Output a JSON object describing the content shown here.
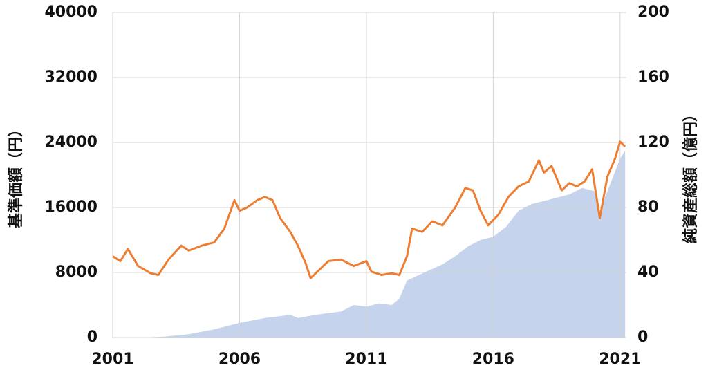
{
  "chart_data": {
    "type": "line-area",
    "y_label": "基準価額（円）",
    "y2_label": "純資産総額（億円）",
    "xlim": [
      2001,
      2021.25
    ],
    "xticks": [
      2001,
      2006,
      2011,
      2016,
      2021
    ],
    "ylim": [
      0,
      40000
    ],
    "yticks": [
      0,
      8000,
      16000,
      24000,
      32000,
      40000
    ],
    "y2lim": [
      0,
      200
    ],
    "y2ticks": [
      0,
      40,
      80,
      120,
      160,
      200
    ],
    "grid": true,
    "series": [
      {
        "name": "純資産総額",
        "type": "area",
        "axis": "y2",
        "color": "#c5d3ec",
        "x": [
          2001,
          2002.5,
          2003,
          2004,
          2005,
          2006,
          2007,
          2007.5,
          2008,
          2008.3,
          2009,
          2010,
          2010.5,
          2011,
          2011.5,
          2012,
          2012.3,
          2012.6,
          2013,
          2014,
          2014.5,
          2015,
          2015.5,
          2016,
          2016.5,
          2017,
          2017.5,
          2018,
          2018.5,
          2019,
          2019.5,
          2020,
          2020.2,
          2020.5,
          2021,
          2021.2
        ],
        "values": [
          0,
          0.2,
          0.5,
          2,
          5,
          9,
          12,
          13,
          14,
          12,
          14,
          16,
          20,
          19,
          21,
          20,
          24,
          35,
          38,
          45,
          50,
          56,
          60,
          62,
          68,
          78,
          82,
          84,
          86,
          88,
          92,
          90,
          78,
          90,
          110,
          115
        ]
      },
      {
        "name": "基準価額",
        "type": "line",
        "axis": "y",
        "color": "#ed7d31",
        "x": [
          2001.0,
          2001.3,
          2001.6,
          2002.0,
          2002.5,
          2002.8,
          2003.2,
          2003.7,
          2004.0,
          2004.5,
          2005.0,
          2005.4,
          2005.8,
          2006.0,
          2006.3,
          2006.7,
          2007.0,
          2007.3,
          2007.6,
          2008.0,
          2008.3,
          2008.6,
          2008.8,
          2009.0,
          2009.5,
          2010.0,
          2010.5,
          2011.0,
          2011.2,
          2011.6,
          2012.0,
          2012.3,
          2012.6,
          2012.8,
          2013.2,
          2013.6,
          2014.0,
          2014.5,
          2014.9,
          2015.2,
          2015.5,
          2015.8,
          2016.2,
          2016.6,
          2017.0,
          2017.4,
          2017.8,
          2018.0,
          2018.3,
          2018.7,
          2019.0,
          2019.3,
          2019.6,
          2019.9,
          2020.2,
          2020.5,
          2020.8,
          2021.0,
          2021.2
        ],
        "values": [
          10000,
          9400,
          10900,
          8800,
          7900,
          7700,
          9600,
          11300,
          10700,
          11300,
          11700,
          13400,
          16900,
          15600,
          16000,
          16900,
          17300,
          16900,
          14700,
          13000,
          11300,
          9200,
          7300,
          7900,
          9400,
          9600,
          8800,
          9400,
          8100,
          7700,
          7900,
          7700,
          10000,
          13400,
          13000,
          14300,
          13800,
          16000,
          18400,
          18100,
          15600,
          13800,
          15100,
          17300,
          18600,
          19200,
          21800,
          20300,
          21100,
          18100,
          19000,
          18600,
          19200,
          20700,
          14700,
          19800,
          22000,
          24100,
          23500
        ]
      }
    ]
  }
}
